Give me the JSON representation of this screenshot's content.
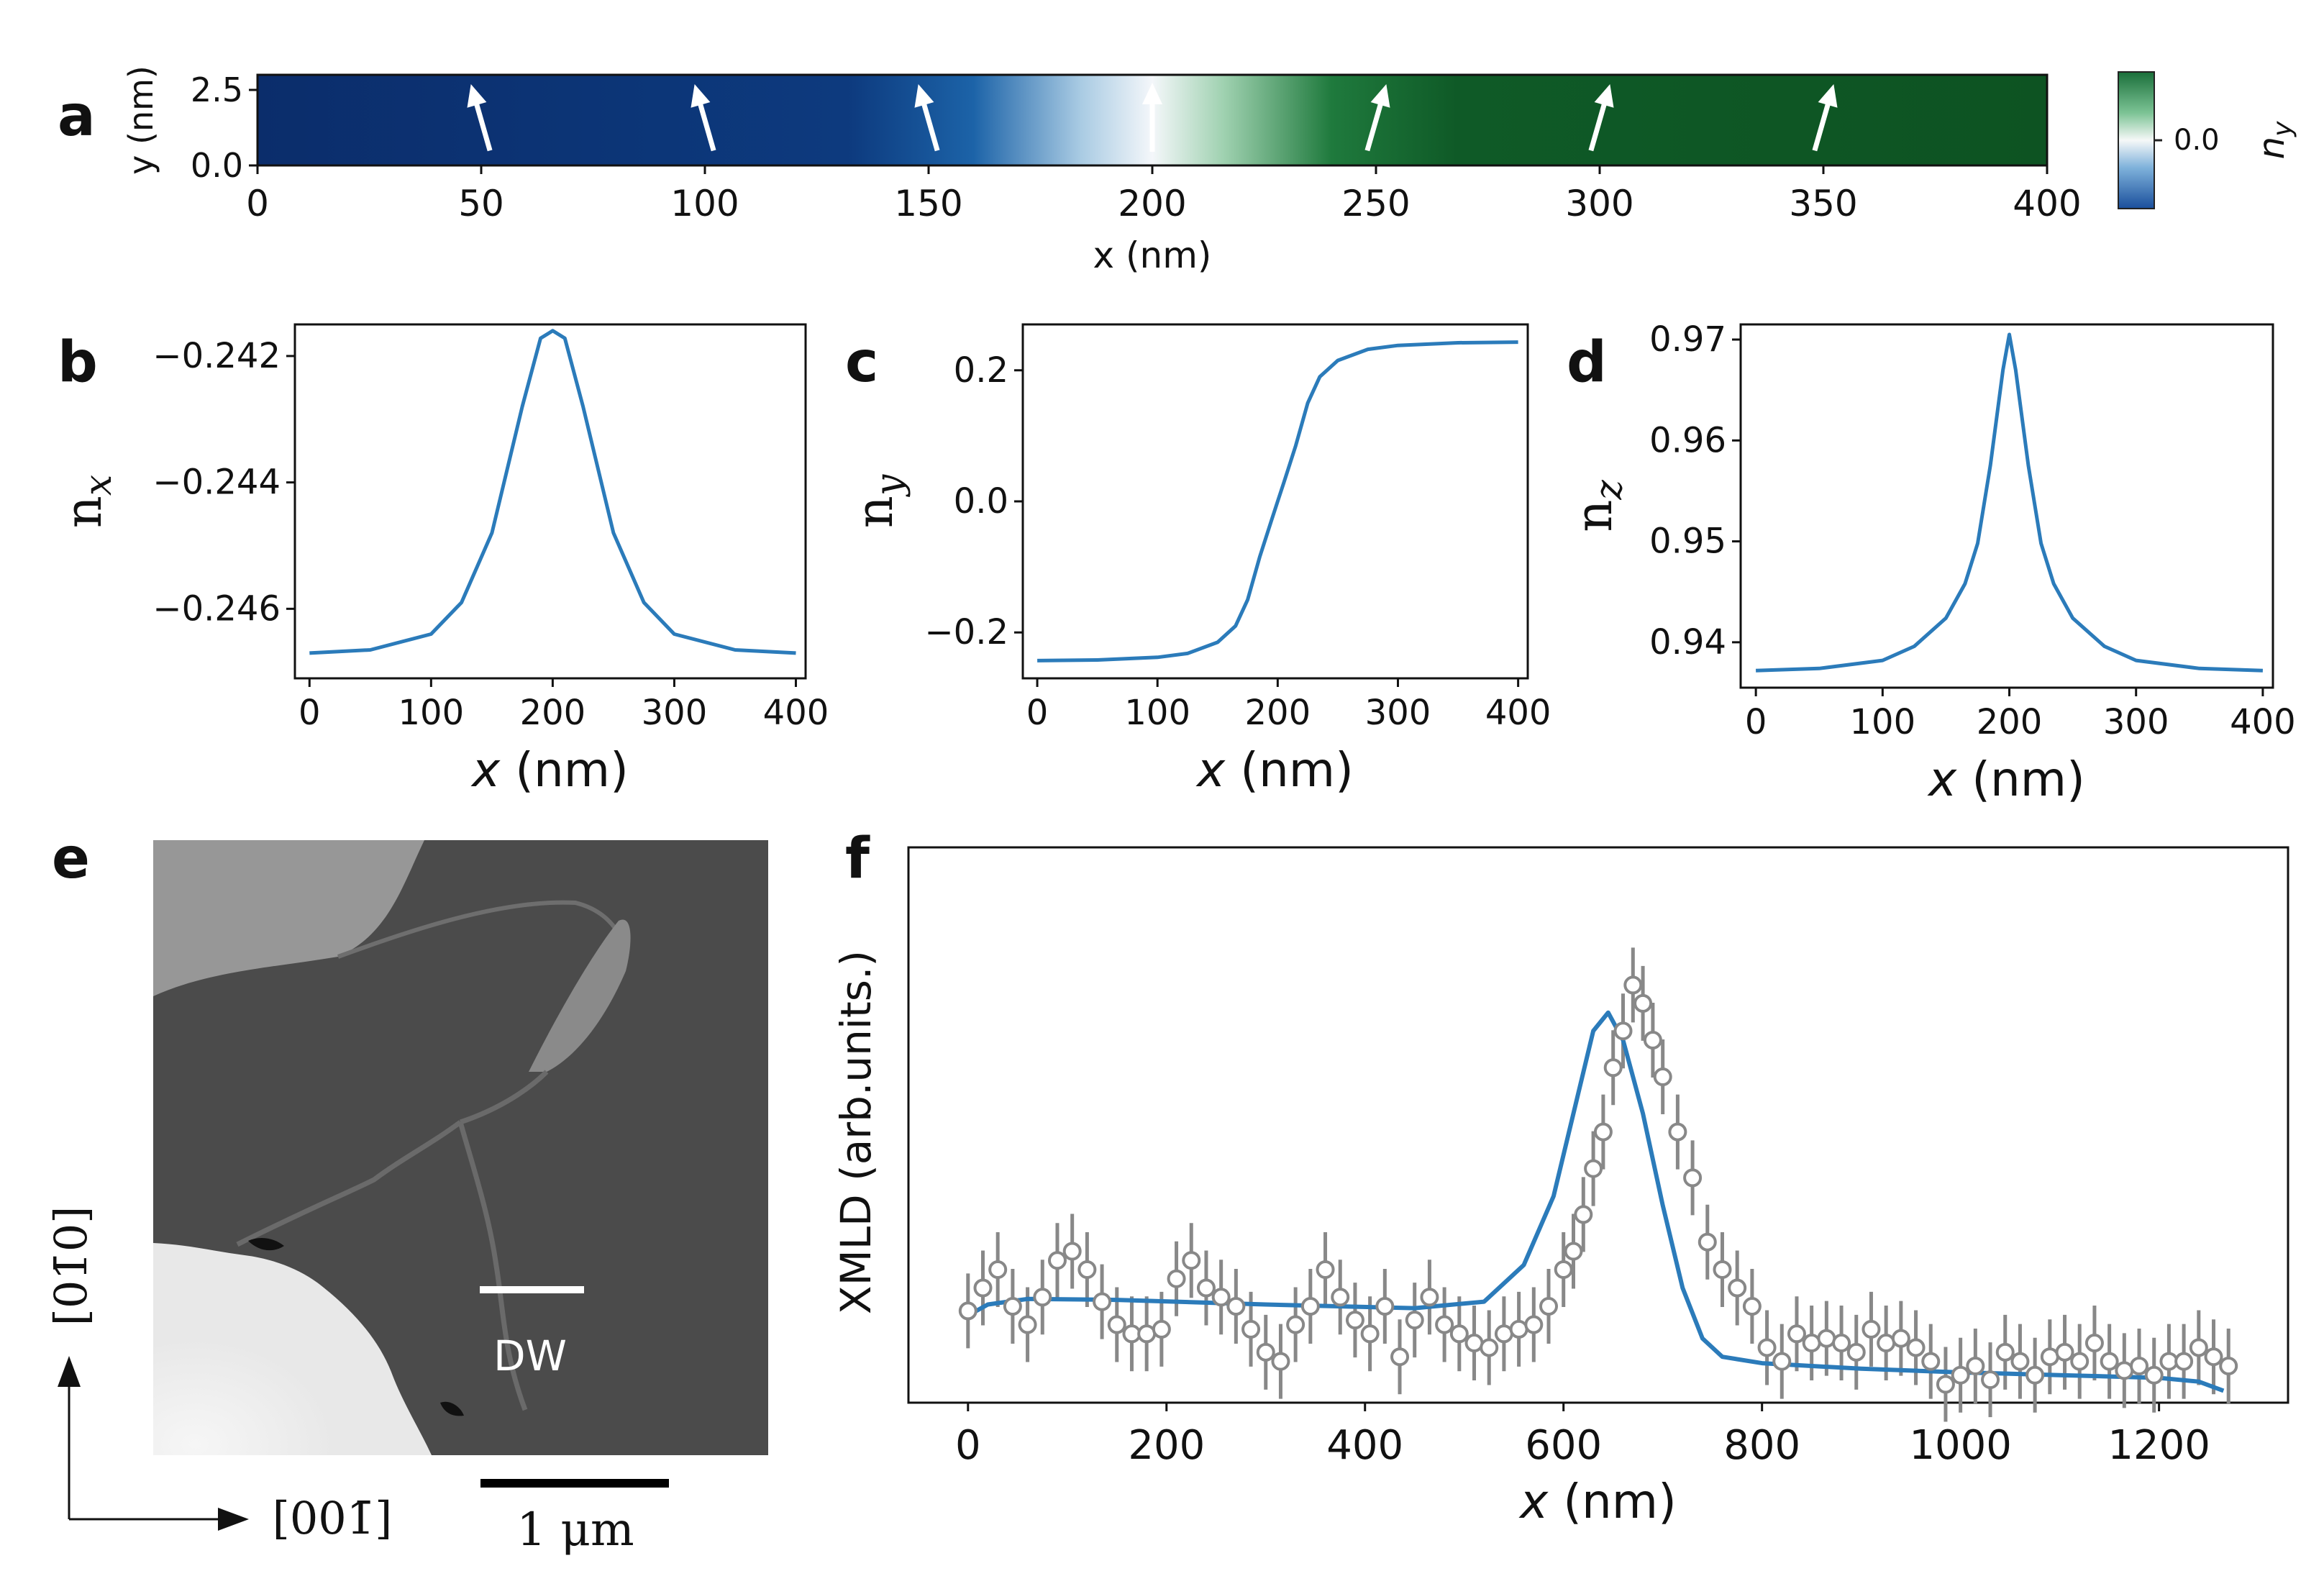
{
  "colors": {
    "line": "#2b7bba",
    "data": "#888888",
    "dark": "#111111",
    "blue": "#0b2d6b",
    "green": "#0d5322"
  },
  "panels": {
    "a": {
      "letter": "a"
    },
    "b": {
      "letter": "b"
    },
    "c": {
      "letter": "c"
    },
    "d": {
      "letter": "d"
    },
    "e": {
      "letter": "e"
    },
    "f": {
      "letter": "f"
    }
  },
  "colorbar": {
    "tick": "0.0",
    "label": "n",
    "label_sub": "y"
  },
  "chart_data": [
    {
      "id": "a",
      "type": "heatmap",
      "title": "",
      "xlabel": "x (nm)",
      "ylabel": "y (nm)",
      "xlim": [
        0,
        400
      ],
      "ylim": [
        0,
        3
      ],
      "xticks": [
        "0",
        "50",
        "100",
        "150",
        "200",
        "250",
        "300",
        "350",
        "400"
      ],
      "yticks": [
        "0.0",
        "2.5"
      ],
      "arrows_x": [
        50,
        100,
        150,
        200,
        250,
        300,
        350
      ],
      "arrow_tilt_deg": [
        -16,
        -16,
        -16,
        0,
        16,
        16,
        16
      ],
      "colorbar_label": "n_y",
      "colorbar_tick": "0.0"
    },
    {
      "id": "b",
      "type": "line",
      "xlabel": "x (nm)",
      "ylabel": "n",
      "ylabel_sub": "x",
      "xlim": [
        -12,
        408
      ],
      "ylim": [
        -0.2471,
        -0.2415
      ],
      "xticks": [
        "0",
        "100",
        "200",
        "300",
        "400"
      ],
      "yticks": [
        "−0.242",
        "−0.244",
        "−0.246"
      ],
      "ytick_values": [
        -0.242,
        -0.244,
        -0.246
      ],
      "x": [
        0,
        50,
        100,
        125,
        150,
        175,
        190,
        200,
        210,
        225,
        250,
        275,
        300,
        350,
        400
      ],
      "values": [
        -0.2467,
        -0.24665,
        -0.2464,
        -0.2459,
        -0.2448,
        -0.2428,
        -0.24172,
        -0.2416,
        -0.24172,
        -0.2428,
        -0.2448,
        -0.2459,
        -0.2464,
        -0.24665,
        -0.2467
      ]
    },
    {
      "id": "c",
      "type": "line",
      "xlabel": "x (nm)",
      "ylabel": "n",
      "ylabel_sub": "y",
      "xlim": [
        -12,
        408
      ],
      "ylim": [
        -0.27,
        0.27
      ],
      "xticks": [
        "0",
        "100",
        "200",
        "300",
        "400"
      ],
      "yticks": [
        "0.2",
        "0.0",
        "−0.2"
      ],
      "ytick_values": [
        0.2,
        0.0,
        -0.2
      ],
      "x": [
        0,
        50,
        100,
        125,
        150,
        165,
        175,
        185,
        195,
        200,
        205,
        215,
        225,
        235,
        250,
        275,
        300,
        350,
        400
      ],
      "values": [
        -0.243,
        -0.242,
        -0.238,
        -0.232,
        -0.215,
        -0.19,
        -0.15,
        -0.085,
        -0.028,
        0.0,
        0.028,
        0.085,
        0.15,
        0.19,
        0.215,
        0.232,
        0.238,
        0.242,
        0.243
      ]
    },
    {
      "id": "d",
      "type": "line",
      "xlabel": "x (nm)",
      "ylabel": "n",
      "ylabel_sub": "z",
      "xlim": [
        -12,
        408
      ],
      "ylim": [
        0.9355,
        0.9715
      ],
      "xticks": [
        "0",
        "100",
        "200",
        "300",
        "400"
      ],
      "yticks": [
        "0.97",
        "0.96",
        "0.95",
        "0.94"
      ],
      "ytick_values": [
        0.97,
        0.96,
        0.95,
        0.94
      ],
      "x": [
        0,
        50,
        100,
        125,
        150,
        165,
        175,
        185,
        195,
        200,
        205,
        215,
        225,
        235,
        250,
        275,
        300,
        350,
        400
      ],
      "values": [
        0.9372,
        0.9374,
        0.9382,
        0.9396,
        0.9424,
        0.9458,
        0.9498,
        0.9575,
        0.967,
        0.9705,
        0.967,
        0.9575,
        0.9498,
        0.9458,
        0.9424,
        0.9396,
        0.9382,
        0.9374,
        0.9372
      ]
    },
    {
      "id": "f",
      "type": "scatter",
      "xlabel": "x (nm)",
      "ylabel": "XMLD (arb.units.)",
      "xlim": [
        -60,
        1330
      ],
      "ylim": [
        -0.95,
        5.1
      ],
      "xticks": [
        "0",
        "200",
        "400",
        "600",
        "800",
        "1000",
        "1200"
      ],
      "tick_values": [
        0,
        200,
        400,
        600,
        800,
        1000,
        1200
      ],
      "fit_x": [
        0,
        20,
        60,
        150,
        300,
        450,
        520,
        560,
        590,
        610,
        630,
        645,
        660,
        680,
        700,
        720,
        740,
        760,
        800,
        900,
        1000,
        1100,
        1200,
        1240,
        1265
      ],
      "fit_values": [
        0.0,
        0.12,
        0.18,
        0.17,
        0.12,
        0.08,
        0.15,
        0.55,
        1.3,
        2.2,
        3.1,
        3.3,
        3.0,
        2.2,
        1.2,
        0.3,
        -0.25,
        -0.45,
        -0.52,
        -0.58,
        -0.62,
        -0.65,
        -0.68,
        -0.72,
        -0.82
      ],
      "series": [
        {
          "name": "data",
          "x": [
            0,
            15,
            30,
            45,
            60,
            75,
            90,
            105,
            120,
            135,
            150,
            165,
            180,
            195,
            210,
            225,
            240,
            255,
            270,
            285,
            300,
            315,
            330,
            345,
            360,
            375,
            390,
            405,
            420,
            435,
            450,
            465,
            480,
            495,
            510,
            525,
            540,
            555,
            570,
            585,
            600,
            610,
            620,
            630,
            640,
            650,
            660,
            670,
            680,
            690,
            700,
            715,
            730,
            745,
            760,
            775,
            790,
            805,
            820,
            835,
            850,
            865,
            880,
            895,
            910,
            925,
            940,
            955,
            970,
            985,
            1000,
            1015,
            1030,
            1045,
            1060,
            1075,
            1090,
            1105,
            1120,
            1135,
            1150,
            1165,
            1180,
            1195,
            1210,
            1225,
            1240,
            1255,
            1270
          ],
          "values": [
            0.05,
            0.3,
            0.5,
            0.1,
            -0.1,
            0.2,
            0.6,
            0.7,
            0.5,
            0.15,
            -0.1,
            -0.2,
            -0.2,
            -0.15,
            0.4,
            0.6,
            0.3,
            0.2,
            0.1,
            -0.15,
            -0.4,
            -0.5,
            -0.1,
            0.1,
            0.5,
            0.2,
            -0.05,
            -0.2,
            0.1,
            -0.45,
            -0.05,
            0.2,
            -0.1,
            -0.2,
            -0.3,
            -0.35,
            -0.2,
            -0.15,
            -0.1,
            0.1,
            0.5,
            0.7,
            1.1,
            1.6,
            2.0,
            2.7,
            3.1,
            3.6,
            3.4,
            3.0,
            2.6,
            2.0,
            1.5,
            0.8,
            0.5,
            0.3,
            0.1,
            -0.35,
            -0.5,
            -0.2,
            -0.3,
            -0.25,
            -0.3,
            -0.4,
            -0.15,
            -0.3,
            -0.25,
            -0.35,
            -0.5,
            -0.75,
            -0.65,
            -0.55,
            -0.7,
            -0.4,
            -0.5,
            -0.65,
            -0.45,
            -0.4,
            -0.5,
            -0.3,
            -0.5,
            -0.6,
            -0.55,
            -0.65,
            -0.5,
            -0.5,
            -0.35,
            -0.45,
            -0.55
          ]
        }
      ]
    }
  ],
  "image_e": {
    "scalebar_label": "DW",
    "scalebar2_label": "1 μm",
    "axis_vertical_label": "[01̄0]",
    "axis_horizontal_label": "[001̄]"
  }
}
